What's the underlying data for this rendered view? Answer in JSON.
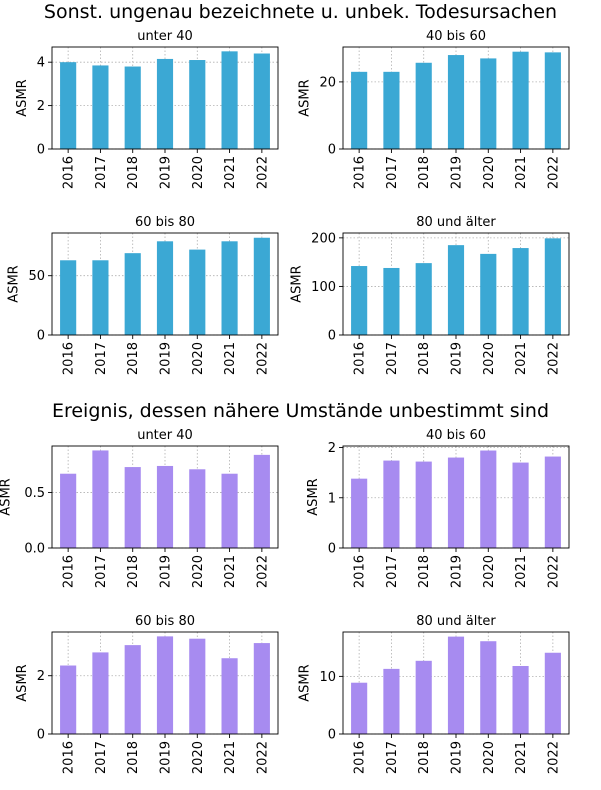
{
  "groups": [
    {
      "title": "Sonst. ungenau bezeichnete u. unbek. Todesursachen",
      "color": "#3ba8d4"
    },
    {
      "title": "Ereignis, dessen nähere Umstände unbestimmt sind",
      "color": "#a78bf0"
    }
  ],
  "chart_data": [
    {
      "type": "bar",
      "group": 0,
      "title": "unter 40",
      "ylabel": "ASMR",
      "categories": [
        "2016",
        "2017",
        "2018",
        "2019",
        "2020",
        "2021",
        "2022"
      ],
      "values": [
        4.0,
        3.85,
        3.8,
        4.15,
        4.1,
        4.5,
        4.4
      ],
      "ylim": [
        0,
        4.7
      ],
      "yticks": [
        0,
        2,
        4
      ],
      "ytick_labels": [
        "0",
        "2",
        "4"
      ],
      "grid": true
    },
    {
      "type": "bar",
      "group": 0,
      "title": "40 bis 60",
      "ylabel": "ASMR",
      "categories": [
        "2016",
        "2017",
        "2018",
        "2019",
        "2020",
        "2021",
        "2022"
      ],
      "values": [
        23.0,
        23.0,
        25.7,
        28.0,
        27.0,
        29.0,
        28.8
      ],
      "ylim": [
        0,
        30.4
      ],
      "yticks": [
        0,
        20
      ],
      "ytick_labels": [
        "0",
        "20"
      ],
      "grid": true
    },
    {
      "type": "bar",
      "group": 0,
      "title": "60 bis 80",
      "ylabel": "ASMR",
      "categories": [
        "2016",
        "2017",
        "2018",
        "2019",
        "2020",
        "2021",
        "2022"
      ],
      "values": [
        63,
        63,
        69,
        79,
        72,
        79,
        82
      ],
      "ylim": [
        0,
        86
      ],
      "yticks": [
        0,
        50
      ],
      "ytick_labels": [
        "0",
        "50"
      ],
      "grid": true
    },
    {
      "type": "bar",
      "group": 0,
      "title": "80 und älter",
      "ylabel": "ASMR",
      "categories": [
        "2016",
        "2017",
        "2018",
        "2019",
        "2020",
        "2021",
        "2022"
      ],
      "values": [
        142,
        138,
        148,
        185,
        167,
        179,
        199
      ],
      "ylim": [
        0,
        210
      ],
      "yticks": [
        0,
        100,
        200
      ],
      "ytick_labels": [
        "0",
        "100",
        "200"
      ],
      "grid": true
    },
    {
      "type": "bar",
      "group": 1,
      "title": "unter 40",
      "ylabel": "ASMR",
      "categories": [
        "2016",
        "2017",
        "2018",
        "2019",
        "2020",
        "2021",
        "2022"
      ],
      "values": [
        0.67,
        0.88,
        0.73,
        0.74,
        0.71,
        0.67,
        0.84
      ],
      "ylim": [
        0,
        0.92
      ],
      "yticks": [
        0,
        0.5
      ],
      "ytick_labels": [
        "0.0",
        "0.5"
      ],
      "grid": true
    },
    {
      "type": "bar",
      "group": 1,
      "title": "40 bis 60",
      "ylabel": "ASMR",
      "categories": [
        "2016",
        "2017",
        "2018",
        "2019",
        "2020",
        "2021",
        "2022"
      ],
      "values": [
        1.38,
        1.74,
        1.72,
        1.8,
        1.94,
        1.7,
        1.82
      ],
      "ylim": [
        0,
        2.03
      ],
      "yticks": [
        0,
        1,
        2
      ],
      "ytick_labels": [
        "0",
        "1",
        "2"
      ],
      "grid": true
    },
    {
      "type": "bar",
      "group": 1,
      "title": "60 bis 80",
      "ylabel": "ASMR",
      "categories": [
        "2016",
        "2017",
        "2018",
        "2019",
        "2020",
        "2021",
        "2022"
      ],
      "values": [
        2.35,
        2.8,
        3.05,
        3.35,
        3.27,
        2.6,
        3.12
      ],
      "ylim": [
        0,
        3.5
      ],
      "yticks": [
        0,
        2
      ],
      "ytick_labels": [
        "0",
        "2"
      ],
      "grid": true
    },
    {
      "type": "bar",
      "group": 1,
      "title": "80 und älter",
      "ylabel": "ASMR",
      "categories": [
        "2016",
        "2017",
        "2018",
        "2019",
        "2020",
        "2021",
        "2022"
      ],
      "values": [
        8.9,
        11.3,
        12.7,
        16.9,
        16.1,
        11.8,
        14.1
      ],
      "ylim": [
        0,
        17.7
      ],
      "yticks": [
        0,
        10
      ],
      "ytick_labels": [
        "0",
        "10"
      ],
      "grid": true
    }
  ]
}
